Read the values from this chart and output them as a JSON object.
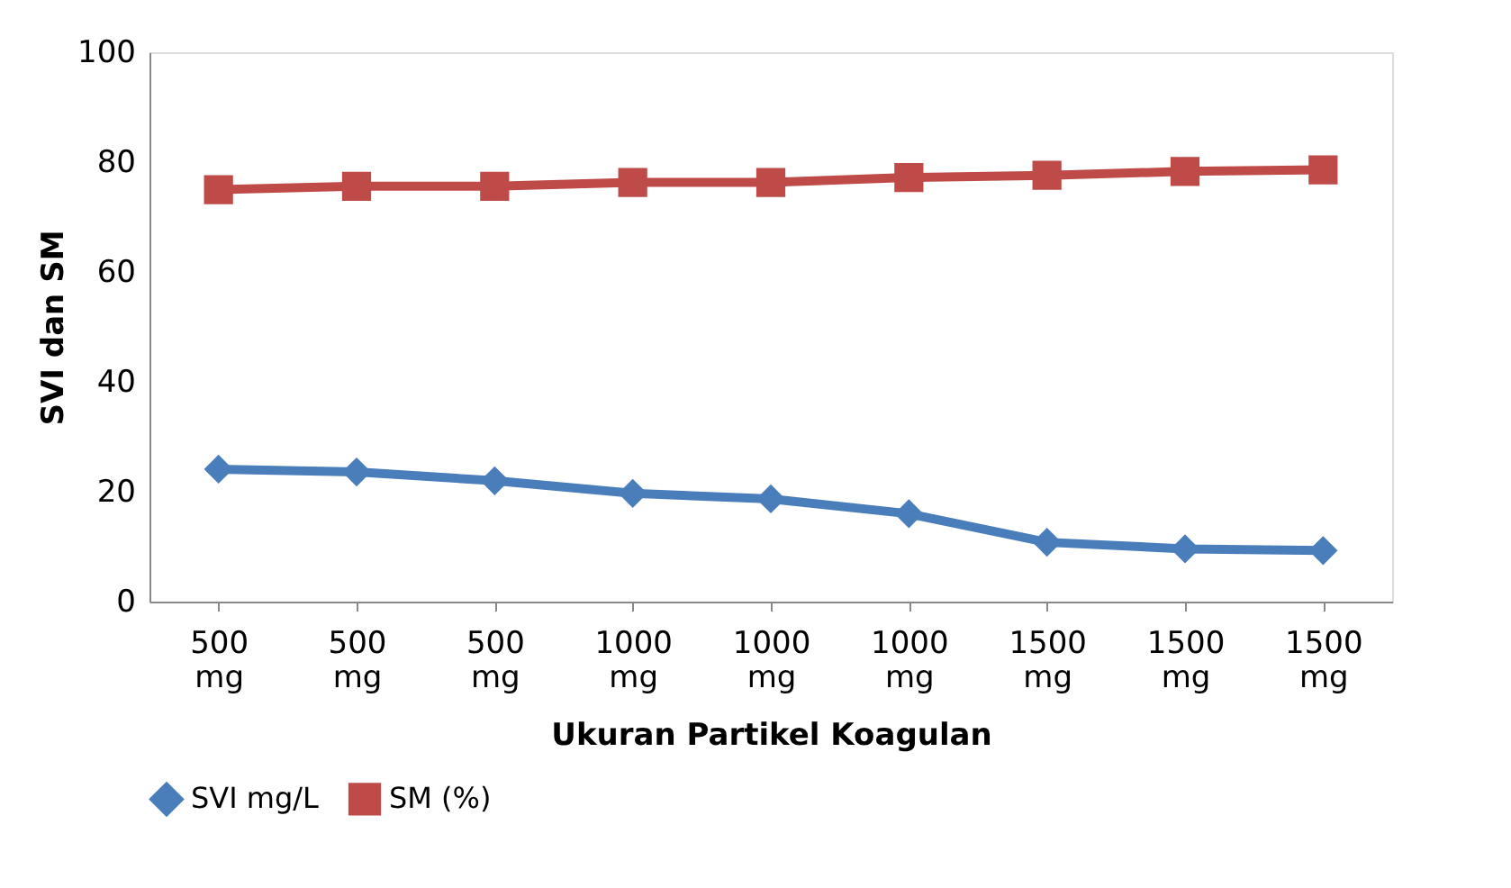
{
  "chart_data": {
    "type": "line",
    "xlabel": "Ukuran Partikel Koagulan",
    "ylabel": "SVI dan SM",
    "categories": [
      "500 mg",
      "500 mg",
      "500 mg",
      "1000 mg",
      "1000 mg",
      "1000 mg",
      "1500 mg",
      "1500 mg",
      "1500 mg"
    ],
    "series": [
      {
        "name": "SVI mg/L",
        "color": "#4a7ebb",
        "marker": "diamond",
        "values": [
          24.1,
          23.6,
          22.0,
          19.7,
          18.7,
          16.0,
          10.8,
          9.6,
          9.3
        ]
      },
      {
        "name": "SM (%)",
        "color": "#be4b48",
        "marker": "square",
        "values": [
          75.0,
          75.6,
          75.6,
          76.3,
          76.3,
          77.2,
          77.6,
          78.3,
          78.6
        ]
      }
    ],
    "ylim": [
      0,
      100
    ],
    "yticks": [
      0,
      20,
      40,
      60,
      80,
      100
    ],
    "grid": false,
    "legend": "bottom"
  }
}
